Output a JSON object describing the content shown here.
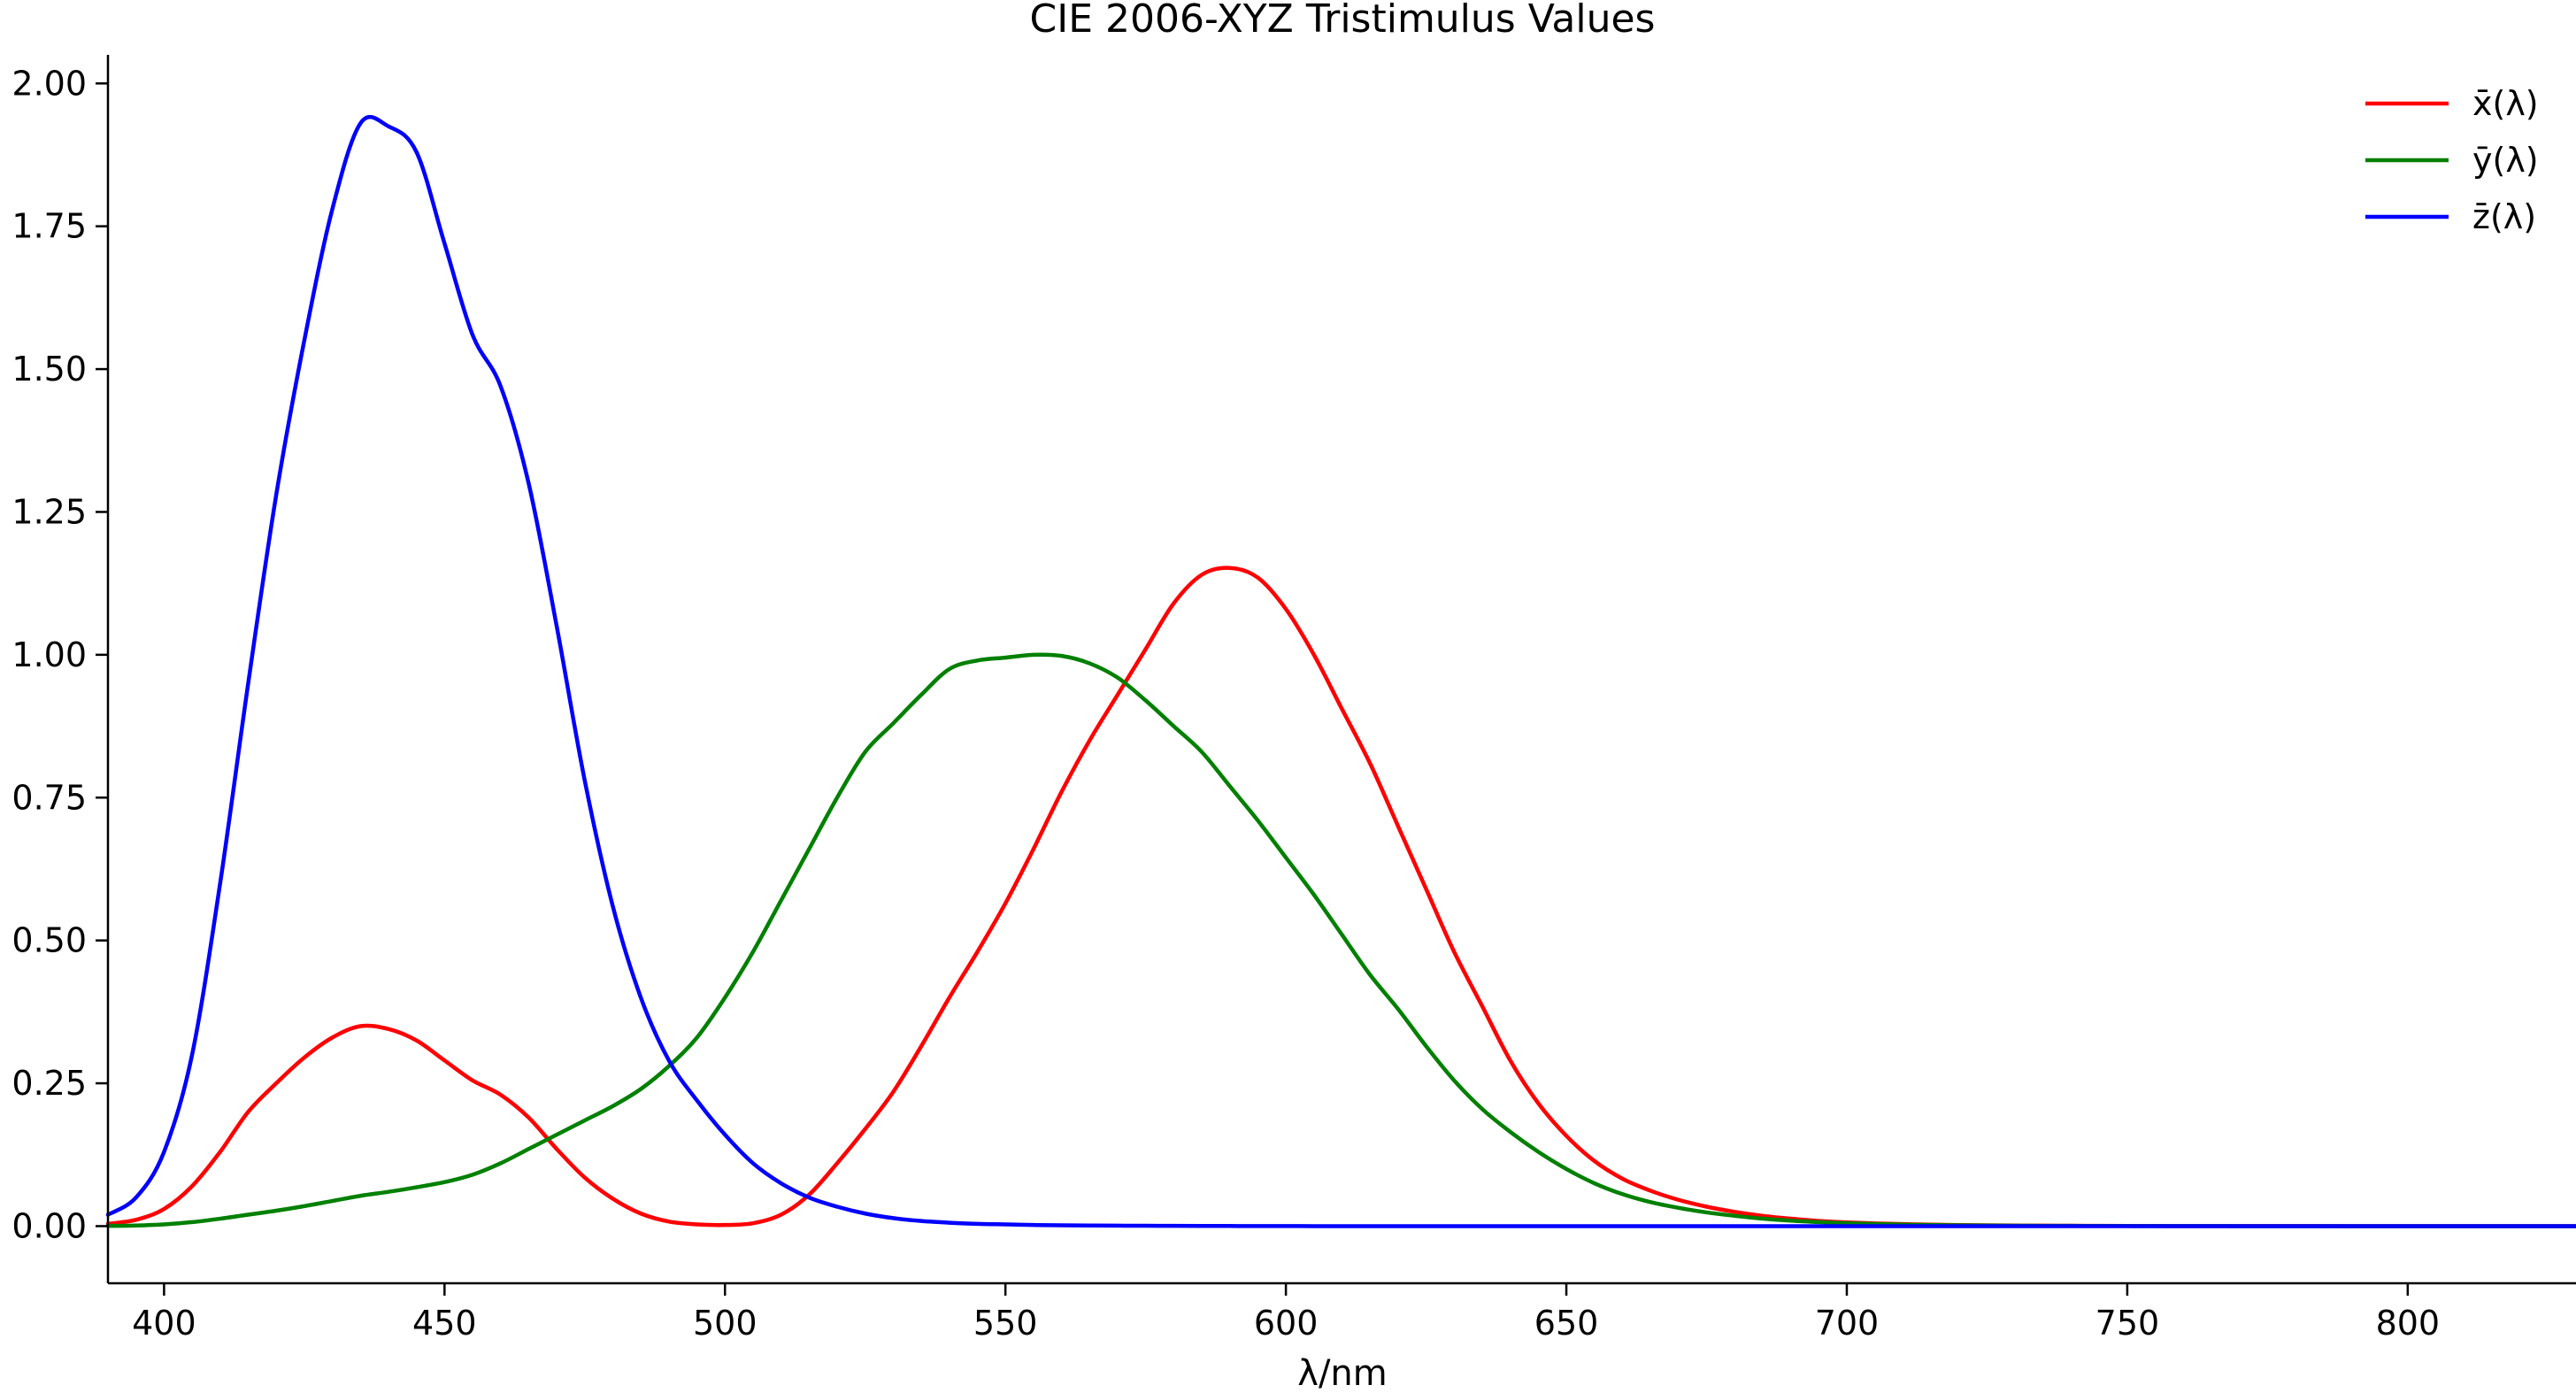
{
  "chart_data": {
    "type": "line",
    "title": "CIE 2006-XYZ Tristimulus Values",
    "xlabel": "λ/nm",
    "ylabel": "",
    "xlim": [
      390,
      830
    ],
    "ylim": [
      -0.1,
      2.05
    ],
    "xticks": [
      400,
      450,
      500,
      550,
      600,
      650,
      700,
      750,
      800
    ],
    "yticks": [
      0.0,
      0.25,
      0.5,
      0.75,
      1.0,
      1.25,
      1.5,
      1.75,
      2.0
    ],
    "xtick_labels": [
      "400",
      "450",
      "500",
      "550",
      "600",
      "650",
      "700",
      "750",
      "800"
    ],
    "ytick_labels": [
      "0.00",
      "0.25",
      "0.50",
      "0.75",
      "1.00",
      "1.25",
      "1.50",
      "1.75",
      "2.00"
    ],
    "grid": false,
    "legend_position": "top-right",
    "x": [
      390,
      395,
      400,
      405,
      410,
      415,
      420,
      425,
      430,
      435,
      440,
      445,
      450,
      455,
      460,
      465,
      470,
      475,
      480,
      485,
      490,
      495,
      500,
      505,
      510,
      515,
      520,
      525,
      530,
      535,
      540,
      545,
      550,
      555,
      560,
      565,
      570,
      575,
      580,
      585,
      590,
      595,
      600,
      605,
      610,
      615,
      620,
      625,
      630,
      635,
      640,
      645,
      650,
      655,
      660,
      665,
      670,
      675,
      680,
      685,
      690,
      695,
      700,
      705,
      710,
      715,
      720,
      725,
      730,
      735,
      740,
      745,
      750,
      755,
      760,
      765,
      770,
      775,
      780,
      785,
      790,
      795,
      800,
      805,
      810,
      815,
      820,
      825,
      830
    ],
    "series": [
      {
        "name": "x̄(λ)",
        "color": "#ff0000",
        "values": [
          0.004,
          0.011,
          0.03,
          0.07,
          0.13,
          0.2,
          0.25,
          0.295,
          0.33,
          0.35,
          0.345,
          0.325,
          0.29,
          0.255,
          0.23,
          0.19,
          0.135,
          0.085,
          0.048,
          0.022,
          0.008,
          0.003,
          0.002,
          0.005,
          0.02,
          0.055,
          0.11,
          0.17,
          0.235,
          0.315,
          0.4,
          0.48,
          0.565,
          0.66,
          0.76,
          0.85,
          0.93,
          1.01,
          1.09,
          1.14,
          1.152,
          1.135,
          1.08,
          1.0,
          0.905,
          0.81,
          0.7,
          0.59,
          0.48,
          0.385,
          0.29,
          0.215,
          0.158,
          0.114,
          0.083,
          0.062,
          0.046,
          0.034,
          0.025,
          0.018,
          0.013,
          0.009,
          0.0065,
          0.0048,
          0.0035,
          0.0026,
          0.0019,
          0.0014,
          0.001,
          0.0008,
          0.0006,
          0.0004,
          0.0003,
          0.0002,
          0.00015,
          0.0001,
          0.0001,
          0.0001,
          0.0001,
          0.0001,
          0.0,
          0.0,
          0.0,
          0.0,
          0.0,
          0.0,
          0.0,
          0.0,
          0.0
        ]
      },
      {
        "name": "ȳ(λ)",
        "color": "#008000",
        "values": [
          0.0004,
          0.0011,
          0.003,
          0.007,
          0.013,
          0.02,
          0.027,
          0.035,
          0.044,
          0.053,
          0.06,
          0.068,
          0.077,
          0.09,
          0.11,
          0.135,
          0.16,
          0.185,
          0.21,
          0.24,
          0.28,
          0.33,
          0.4,
          0.48,
          0.57,
          0.66,
          0.75,
          0.83,
          0.88,
          0.93,
          0.975,
          0.99,
          0.995,
          1.0,
          0.998,
          0.985,
          0.96,
          0.92,
          0.875,
          0.83,
          0.77,
          0.71,
          0.645,
          0.58,
          0.51,
          0.44,
          0.38,
          0.315,
          0.255,
          0.205,
          0.165,
          0.13,
          0.1,
          0.075,
          0.056,
          0.042,
          0.032,
          0.024,
          0.018,
          0.013,
          0.0095,
          0.007,
          0.0051,
          0.0037,
          0.0027,
          0.002,
          0.0014,
          0.001,
          0.0007,
          0.0005,
          0.0004,
          0.0003,
          0.0002,
          0.00015,
          0.0001,
          0.0001,
          0.0,
          0.0,
          0.0,
          0.0,
          0.0,
          0.0,
          0.0,
          0.0,
          0.0,
          0.0,
          0.0,
          0.0,
          0.0
        ]
      },
      {
        "name": "z̄(λ)",
        "color": "#0000ff",
        "values": [
          0.02,
          0.05,
          0.13,
          0.3,
          0.6,
          0.95,
          1.28,
          1.55,
          1.78,
          1.93,
          1.925,
          1.88,
          1.72,
          1.56,
          1.47,
          1.3,
          1.05,
          0.78,
          0.56,
          0.4,
          0.29,
          0.22,
          0.16,
          0.11,
          0.075,
          0.05,
          0.034,
          0.022,
          0.014,
          0.009,
          0.006,
          0.004,
          0.003,
          0.002,
          0.0015,
          0.001,
          0.0008,
          0.0006,
          0.0004,
          0.0003,
          0.0002,
          0.0001,
          0.0001,
          0.0,
          0.0,
          0.0,
          0.0,
          0.0,
          0.0,
          0.0,
          0.0,
          0.0,
          0.0,
          0.0,
          0.0,
          0.0,
          0.0,
          0.0,
          0.0,
          0.0,
          0.0,
          0.0,
          0.0,
          0.0,
          0.0,
          0.0,
          0.0,
          0.0,
          0.0,
          0.0,
          0.0,
          0.0,
          0.0,
          0.0,
          0.0,
          0.0,
          0.0,
          0.0,
          0.0,
          0.0,
          0.0,
          0.0,
          0.0,
          0.0,
          0.0,
          0.0,
          0.0,
          0.0,
          0.0
        ]
      }
    ]
  }
}
